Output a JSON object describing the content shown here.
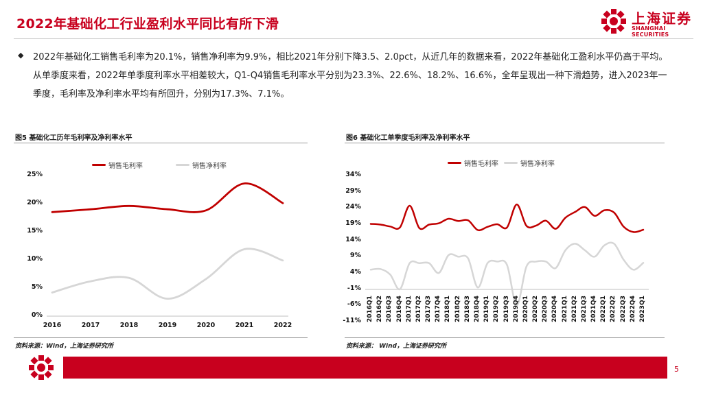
{
  "header": {
    "title": "2022年基础化工行业盈利水平同比有所下滑",
    "logo_cn": "上海证券",
    "logo_en": "SHANGHAI SECURITIES"
  },
  "bullet": {
    "mark": "◆",
    "text": "2022年基础化工销售毛利率为20.1%，销售净利率为9.9%，相比2021年分别下降3.5、2.0pct，从近几年的数据来看，2022年基础化工盈利水平仍高于平均。从单季度来看，2022年单季度利率水平相差较大，Q1-Q4销售毛利率水平分别为23.3%、22.6%、18.2%、16.6%，全年呈现出一种下滑趋势，进入2023年一季度，毛利率及净利率水平均有所回升，分别为17.3%、7.1%。"
  },
  "colors": {
    "brand": "#c8001e",
    "gross": "#c00000",
    "net": "#d6d6d6"
  },
  "chart_data": [
    {
      "type": "line",
      "title": "图5 基础化工历年毛利率及净利率水平",
      "categories": [
        "2016",
        "2017",
        "2018",
        "2019",
        "2020",
        "2021",
        "2022"
      ],
      "series": [
        {
          "name": "销售毛利率",
          "values": [
            18.5,
            19.0,
            19.6,
            19.0,
            18.8,
            23.6,
            20.1
          ]
        },
        {
          "name": "销售净利率",
          "values": [
            4.2,
            6.2,
            6.8,
            3.1,
            6.6,
            11.9,
            9.9
          ]
        }
      ],
      "yticks": [
        "25%",
        "20%",
        "15%",
        "10%",
        "5%",
        "0%"
      ],
      "ylim": [
        0,
        25
      ],
      "source": "资料来源：Wind，上海证券研究所"
    },
    {
      "type": "line",
      "title": "图6 基础化工单季度毛利率及净利率水平",
      "categories": [
        "2016Q1",
        "2016Q2",
        "2016Q3",
        "2016Q4",
        "2017Q1",
        "2017Q2",
        "2017Q3",
        "2017Q4",
        "2018Q1",
        "2018Q2",
        "2018Q3",
        "2018Q4",
        "2019Q1",
        "2019Q2",
        "2019Q3",
        "2019Q4",
        "2020Q1",
        "2020Q2",
        "2020Q3",
        "2020Q4",
        "2021Q1",
        "2021Q2",
        "2021Q3",
        "2021Q4",
        "2022Q1",
        "2022Q2",
        "2022Q3",
        "2022Q4",
        "2023Q1"
      ],
      "series": [
        {
          "name": "销售毛利率",
          "values": [
            19.1,
            18.9,
            18.3,
            18.0,
            24.7,
            17.8,
            18.9,
            19.3,
            20.7,
            20.0,
            20.2,
            17.2,
            18.2,
            19.0,
            18.0,
            25.1,
            18.5,
            18.6,
            20.1,
            17.6,
            21.0,
            22.8,
            24.3,
            21.6,
            23.3,
            22.6,
            18.2,
            16.6,
            17.3
          ]
        },
        {
          "name": "销售净利率",
          "values": [
            5.0,
            5.2,
            3.5,
            -1.0,
            7.0,
            7.0,
            7.0,
            4.0,
            9.5,
            9.0,
            8.5,
            -0.5,
            7.0,
            7.5,
            6.5,
            -6.0,
            6.0,
            7.5,
            7.5,
            5.5,
            11.0,
            13.0,
            11.0,
            9.0,
            12.5,
            13.0,
            8.0,
            5.0,
            7.1
          ]
        }
      ],
      "yticks": [
        "34%",
        "29%",
        "24%",
        "19%",
        "14%",
        "9%",
        "4%",
        "-1%",
        "-6%",
        "-11%"
      ],
      "ylim": [
        -11,
        34
      ],
      "source": "资料来源： Wind，上海证券研究所"
    }
  ],
  "footer": {
    "page": "5"
  }
}
